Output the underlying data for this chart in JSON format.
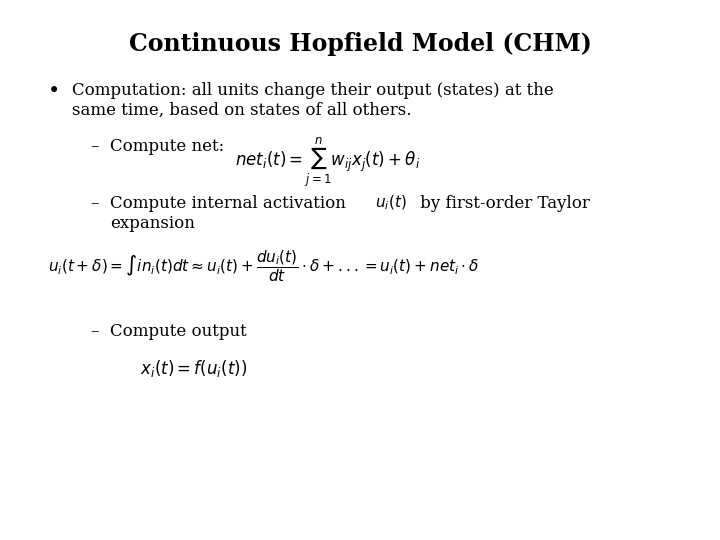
{
  "title": "Continuous Hopfield Model (CHM)",
  "background_color": "#ffffff",
  "title_fontsize": 17,
  "body_fontsize": 12,
  "math_fontsize": 11,
  "bullet_text_line1": "Computation: all units change their output (states) at the",
  "bullet_text_line2": "same time, based on states of all others.",
  "sub1_label": "Compute net: ",
  "sub1_formula": "$net_i(t) = \\sum_{j=1}^{n} w_{ij}x_j(t) + \\theta_i$",
  "sub2_label": "Compute internal activation ",
  "sub2_formula_inline": "$u_i(t)$",
  "sub2_label2": " by first-order Taylor",
  "sub2_continuation": "expansion",
  "sub2_big_formula": "$u_i(t+\\delta) = \\int in_i(t)dt \\approx u_i(t) + \\dfrac{du_i(t)}{dt} \\cdot \\delta + ... = u_i(t) + net_i \\cdot \\delta$",
  "sub3_label": "Compute output",
  "sub3_formula": "$x_i(t) = f(u_i(t))$"
}
